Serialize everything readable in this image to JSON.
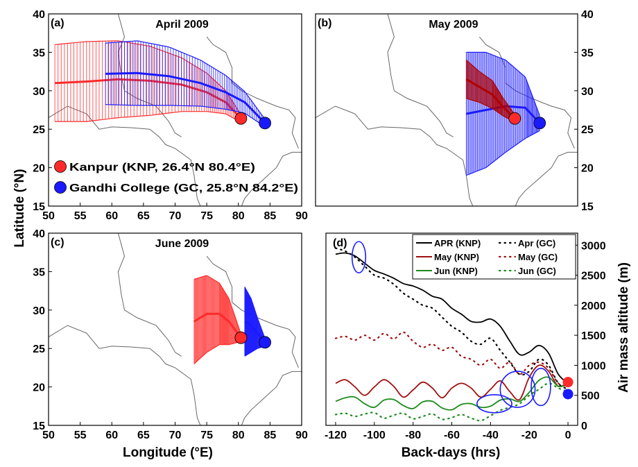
{
  "figure": {
    "y_axis_label": "Latitude (°N)",
    "x_axis_label": "Longitude (°E)",
    "d_x_axis_label": "Back-days (hrs)",
    "d_y_axis_label": "Air mass altitude (m)"
  },
  "colors": {
    "kanpur": "#ff2a2a",
    "gandhi": "#1a1aff",
    "kanpur_dark": "#b00000",
    "gandhi_dark": "#0000a0"
  },
  "chart_data": [
    {
      "panel": "a",
      "panel_label": "(a)",
      "type": "scatter",
      "title": "April 2009",
      "xlim": [
        50,
        90
      ],
      "ylim": [
        15,
        40
      ],
      "x_ticks": [
        "50",
        "55",
        "60",
        "65",
        "70",
        "75",
        "80",
        "85",
        "90"
      ],
      "y_ticks": [
        "15",
        "20",
        "25",
        "30",
        "35",
        "40"
      ],
      "legend": [
        {
          "name": "Kanpur (KNP, 26.4°N 80.4°E)",
          "color": "#ff2a2a"
        },
        {
          "name": "Gandhi College (GC, 25.8°N 84.2°E)",
          "color": "#1a1aff"
        }
      ],
      "sites": [
        {
          "lon": 80.4,
          "lat": 26.4,
          "color": "#ff2a2a"
        },
        {
          "lon": 84.2,
          "lat": 25.8,
          "color": "#1a1aff"
        }
      ],
      "trajectories": [
        {
          "color": "#ff2a2a",
          "x": [
            51,
            56,
            61,
            66,
            71,
            75,
            78,
            80.4
          ],
          "y": [
            31,
            31.2,
            31.5,
            31.3,
            30.8,
            29.8,
            28.5,
            26.4
          ],
          "spread": [
            5,
            5.2,
            5,
            4.5,
            3.5,
            2.5,
            1.5,
            0.5
          ]
        },
        {
          "color": "#1a1aff",
          "x": [
            59,
            64,
            69,
            74,
            78,
            81,
            84.2
          ],
          "y": [
            32.2,
            32.3,
            31.9,
            31,
            29.8,
            28.5,
            25.8
          ],
          "spread": [
            4,
            4.2,
            3.8,
            3,
            2.2,
            1.4,
            0.5
          ]
        }
      ]
    },
    {
      "panel": "b",
      "panel_label": "(b)",
      "type": "scatter",
      "title": "May 2009",
      "xlim": [
        50,
        90
      ],
      "ylim": [
        15,
        40
      ],
      "y_ticks": [
        "15",
        "20",
        "25",
        "30",
        "35",
        "40"
      ],
      "sites": [
        {
          "lon": 80.4,
          "lat": 26.4,
          "color": "#ff2a2a"
        },
        {
          "lon": 84.2,
          "lat": 25.8,
          "color": "#1a1aff"
        }
      ],
      "trajectories": [
        {
          "color": "#1a1aff",
          "x": [
            73,
            76,
            79,
            82,
            84.2
          ],
          "y": [
            27,
            27.5,
            28,
            27.8,
            25.8
          ],
          "spread": [
            8,
            7.5,
            6,
            4,
            1
          ]
        },
        {
          "color": "#b00000",
          "x": [
            73,
            75,
            77,
            78.5,
            80.4
          ],
          "y": [
            31.5,
            30.5,
            29.5,
            28,
            26.4
          ],
          "spread": [
            2.5,
            2,
            1.8,
            1.2,
            0.5
          ]
        }
      ]
    },
    {
      "panel": "c",
      "panel_label": "(c)",
      "type": "scatter",
      "title": "June 2009",
      "xlim": [
        50,
        90
      ],
      "ylim": [
        15,
        40
      ],
      "x_ticks": [
        "50",
        "55",
        "60",
        "65",
        "70",
        "75",
        "80",
        "85",
        "90"
      ],
      "y_ticks": [
        "15",
        "20",
        "25",
        "30",
        "35",
        "40"
      ],
      "sites": [
        {
          "lon": 80.4,
          "lat": 26.4,
          "color": "#ff2a2a"
        },
        {
          "lon": 84.2,
          "lat": 25.8,
          "color": "#1a1aff"
        }
      ],
      "trajectories": [
        {
          "color": "#ff2a2a",
          "x": [
            73,
            75,
            77,
            78.5,
            80.4
          ],
          "y": [
            28.5,
            29.5,
            29.5,
            28.5,
            26.4
          ],
          "spread": [
            5.5,
            5,
            4,
            3,
            0.5
          ]
        },
        {
          "color": "#1a1aff",
          "x": [
            81,
            82,
            83,
            84.2
          ],
          "y": [
            28.5,
            28,
            27,
            25.8
          ],
          "spread": [
            4.5,
            3.5,
            2,
            0.5
          ]
        }
      ]
    },
    {
      "panel": "d",
      "panel_label": "(d)",
      "type": "line",
      "xlim": [
        -125,
        5
      ],
      "ylim": [
        0,
        3200
      ],
      "x_ticks": [
        "-120",
        "-100",
        "-80",
        "-60",
        "-40",
        "-20",
        "0"
      ],
      "y_ticks": [
        "0",
        "500",
        "1000",
        "1500",
        "2000",
        "2500",
        "3000"
      ],
      "series": [
        {
          "name": "APR (KNP)",
          "color": "#000000",
          "dashed": false,
          "x": [
            -120,
            -115,
            -110,
            -105,
            -100,
            -95,
            -90,
            -85,
            -80,
            -75,
            -70,
            -65,
            -60,
            -55,
            -50,
            -45,
            -40,
            -35,
            -30,
            -25,
            -20,
            -15,
            -10,
            -5,
            0
          ],
          "values": [
            2850,
            2870,
            2820,
            2700,
            2580,
            2520,
            2450,
            2360,
            2320,
            2250,
            2150,
            2100,
            1950,
            1850,
            1730,
            1720,
            1770,
            1650,
            1400,
            1180,
            1220,
            1330,
            1200,
            850,
            700
          ]
        },
        {
          "name": "Apr (GC)",
          "color": "#000000",
          "dashed": true,
          "x": [
            -120,
            -115,
            -110,
            -105,
            -100,
            -95,
            -90,
            -85,
            -80,
            -75,
            -70,
            -65,
            -60,
            -55,
            -50,
            -45,
            -40,
            -35,
            -30,
            -25,
            -20,
            -15,
            -10,
            -5,
            0
          ],
          "values": [
            2950,
            2900,
            2800,
            2650,
            2500,
            2450,
            2350,
            2200,
            2100,
            2000,
            1950,
            1800,
            1650,
            1550,
            1400,
            1350,
            1450,
            1250,
            1050,
            850,
            900,
            1100,
            1000,
            700,
            600
          ]
        },
        {
          "name": "May (KNP)",
          "color": "#a01010",
          "dashed": false,
          "x": [
            -120,
            -115,
            -110,
            -105,
            -100,
            -95,
            -90,
            -85,
            -80,
            -75,
            -70,
            -65,
            -60,
            -55,
            -50,
            -45,
            -40,
            -35,
            -30,
            -25,
            -20,
            -15,
            -10,
            -5,
            0
          ],
          "values": [
            700,
            760,
            640,
            500,
            640,
            760,
            650,
            470,
            590,
            720,
            620,
            460,
            620,
            700,
            620,
            470,
            600,
            740,
            560,
            430,
            800,
            1000,
            900,
            650,
            720
          ]
        },
        {
          "name": "May (GC)",
          "color": "#a01010",
          "dashed": true,
          "x": [
            -120,
            -115,
            -110,
            -105,
            -100,
            -95,
            -90,
            -85,
            -80,
            -75,
            -70,
            -65,
            -60,
            -55,
            -50,
            -45,
            -40,
            -35,
            -30,
            -25,
            -20,
            -15,
            -10,
            -5,
            0
          ],
          "values": [
            1450,
            1480,
            1420,
            1500,
            1420,
            1530,
            1440,
            1550,
            1400,
            1300,
            1350,
            1250,
            1300,
            1150,
            1100,
            1000,
            1100,
            950,
            1050,
            850,
            1000,
            1050,
            950,
            700,
            650
          ]
        },
        {
          "name": "Jun (KNP)",
          "color": "#1a8a1a",
          "dashed": false,
          "x": [
            -120,
            -115,
            -110,
            -105,
            -100,
            -95,
            -90,
            -85,
            -80,
            -75,
            -70,
            -65,
            -60,
            -55,
            -50,
            -45,
            -40,
            -35,
            -30,
            -25,
            -20,
            -15,
            -10,
            -5,
            0
          ],
          "values": [
            400,
            460,
            470,
            360,
            300,
            420,
            430,
            330,
            280,
            390,
            400,
            290,
            260,
            350,
            360,
            300,
            320,
            420,
            440,
            400,
            550,
            750,
            800,
            650,
            680
          ]
        },
        {
          "name": "Jun (GC)",
          "color": "#1a8a1a",
          "dashed": true,
          "x": [
            -120,
            -115,
            -110,
            -105,
            -100,
            -95,
            -90,
            -85,
            -80,
            -75,
            -70,
            -65,
            -60,
            -55,
            -50,
            -45,
            -40,
            -35,
            -30,
            -25,
            -20,
            -15,
            -10,
            -5,
            0
          ],
          "values": [
            180,
            200,
            150,
            190,
            210,
            120,
            170,
            200,
            110,
            150,
            190,
            100,
            130,
            180,
            120,
            80,
            160,
            250,
            300,
            360,
            500,
            600,
            700,
            620,
            560
          ]
        }
      ],
      "sites": [
        {
          "x": 0,
          "y": 720,
          "color": "#ff2a2a"
        },
        {
          "x": 0,
          "y": 520,
          "color": "#1a1aff"
        }
      ],
      "ellipses": [
        {
          "cx": -108,
          "cy": 2800,
          "rx": 3.5,
          "ry": 260
        },
        {
          "cx": -26,
          "cy": 600,
          "rx": 9,
          "ry": 300
        },
        {
          "cx": -14,
          "cy": 640,
          "rx": 5,
          "ry": 310
        },
        {
          "cx": -38,
          "cy": 360,
          "rx": 9,
          "ry": 150
        }
      ]
    }
  ]
}
